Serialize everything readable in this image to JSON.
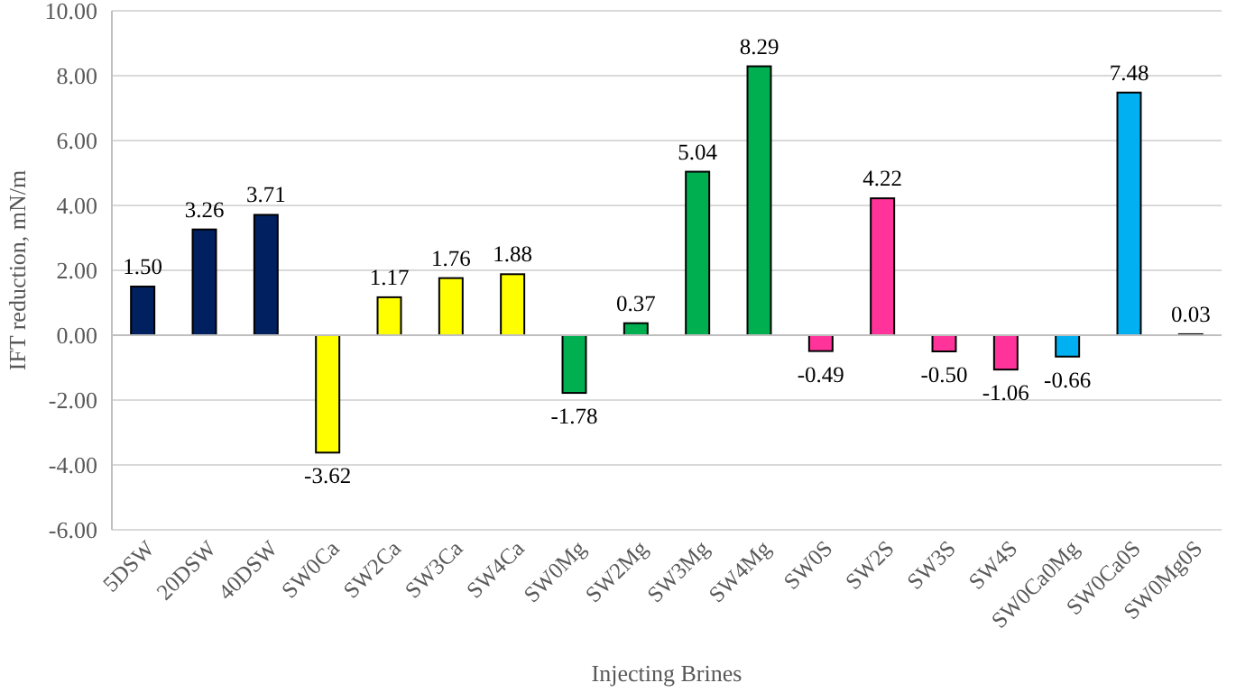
{
  "chart_data": {
    "type": "bar",
    "xlabel": "Injecting Brines",
    "ylabel": "IFT reduction, mN/m",
    "categories": [
      "5DSW",
      "20DSW",
      "40DSW",
      "SW0Ca",
      "SW2Ca",
      "SW3Ca",
      "SW4Ca",
      "SW0Mg",
      "SW2Mg",
      "SW3Mg",
      "SW4Mg",
      "SW0S",
      "SW2S",
      "SW3S",
      "SW4S",
      "SW0Ca0Mg",
      "SW0Ca0S",
      "SW0Mg0S"
    ],
    "values": [
      1.5,
      3.26,
      3.71,
      -3.62,
      1.17,
      1.76,
      1.88,
      -1.78,
      0.37,
      5.04,
      8.29,
      -0.49,
      4.22,
      -0.5,
      -1.06,
      -0.66,
      7.48,
      0.03
    ],
    "colors": [
      "#002060",
      "#002060",
      "#002060",
      "#ffff00",
      "#ffff00",
      "#ffff00",
      "#ffff00",
      "#00b050",
      "#00b050",
      "#00b050",
      "#00b050",
      "#ff3399",
      "#ff3399",
      "#ff3399",
      "#ff3399",
      "#00b0f0",
      "#00b0f0",
      "#00b0f0"
    ],
    "value_labels": [
      "1.50",
      "3.26",
      "3.71",
      "-3.62",
      "1.17",
      "1.76",
      "1.88",
      "-1.78",
      "0.37",
      "5.04",
      "8.29",
      "-0.49",
      "4.22",
      "-0.50",
      "-1.06",
      "-0.66",
      "7.48",
      "0.03"
    ],
    "ylim": [
      -6,
      10
    ],
    "yticks": [
      {
        "value": -6,
        "label": "-6.00"
      },
      {
        "value": -4,
        "label": "-4.00"
      },
      {
        "value": -2,
        "label": "-2.00"
      },
      {
        "value": 0,
        "label": "0.00"
      },
      {
        "value": 2,
        "label": "2.00"
      },
      {
        "value": 4,
        "label": "4.00"
      },
      {
        "value": 6,
        "label": "6.00"
      },
      {
        "value": 8,
        "label": "8.00"
      },
      {
        "value": 10,
        "label": "10.00"
      }
    ],
    "grid": "y"
  }
}
